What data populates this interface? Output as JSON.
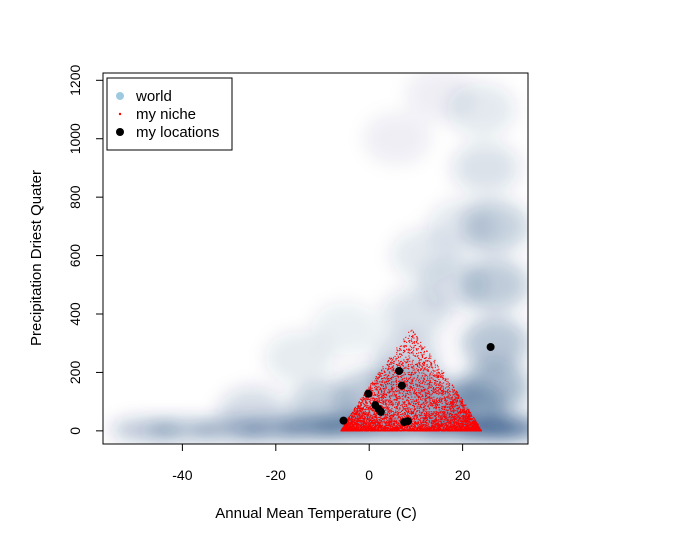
{
  "chart_data": {
    "type": "scatter",
    "title": "",
    "xlabel": "Annual Mean Temperature (C)",
    "ylabel": "Precipitation Driest Quater",
    "xlim": [
      -57,
      34
    ],
    "ylim": [
      -45,
      1225
    ],
    "x_ticks": [
      -40,
      -20,
      0,
      20
    ],
    "y_ticks": [
      0,
      200,
      400,
      600,
      800,
      1000,
      1200
    ],
    "grid": false,
    "legend_position": "top-left",
    "legend": [
      {
        "label": "world",
        "color": "#9ecae1",
        "marker": "circle"
      },
      {
        "label": "my niche",
        "color": "#ff0000",
        "marker": "small-point"
      },
      {
        "label": "my locations",
        "color": "#000000",
        "marker": "circle"
      }
    ],
    "series": [
      {
        "name": "world",
        "render": "smoothed-density",
        "color": "#08306b",
        "density_cells": [
          {
            "x": -48,
            "y": 3,
            "w": 0.55
          },
          {
            "x": -40,
            "y": 3,
            "w": 0.6
          },
          {
            "x": -30,
            "y": 4,
            "w": 0.65
          },
          {
            "x": -20,
            "y": 6,
            "w": 0.75
          },
          {
            "x": -12,
            "y": 10,
            "w": 0.8
          },
          {
            "x": -5,
            "y": 14,
            "w": 0.9
          },
          {
            "x": 2,
            "y": 14,
            "w": 0.8
          },
          {
            "x": 10,
            "y": 12,
            "w": 0.75
          },
          {
            "x": 18,
            "y": 8,
            "w": 0.8
          },
          {
            "x": 26,
            "y": 6,
            "w": 1.0
          },
          {
            "x": 31,
            "y": 10,
            "w": 1.0
          },
          {
            "x": -25,
            "y": 60,
            "w": 0.3
          },
          {
            "x": -10,
            "y": 80,
            "w": 0.4
          },
          {
            "x": 0,
            "y": 120,
            "w": 0.45
          },
          {
            "x": 8,
            "y": 150,
            "w": 0.5
          },
          {
            "x": 15,
            "y": 100,
            "w": 0.5
          },
          {
            "x": 22,
            "y": 80,
            "w": 0.55
          },
          {
            "x": 27,
            "y": 150,
            "w": 0.6
          },
          {
            "x": 27,
            "y": 300,
            "w": 0.5
          },
          {
            "x": 27,
            "y": 500,
            "w": 0.45
          },
          {
            "x": 27,
            "y": 700,
            "w": 0.4
          },
          {
            "x": 25,
            "y": 900,
            "w": 0.25
          },
          {
            "x": 24,
            "y": 1100,
            "w": 0.2
          },
          {
            "x": 8,
            "y": 250,
            "w": 0.3
          },
          {
            "x": 10,
            "y": 400,
            "w": 0.25
          },
          {
            "x": 12,
            "y": 600,
            "w": 0.2
          },
          {
            "x": 18,
            "y": 500,
            "w": 0.25
          },
          {
            "x": 20,
            "y": 700,
            "w": 0.2
          },
          {
            "x": 6,
            "y": 1000,
            "w": 0.12
          },
          {
            "x": 15,
            "y": 1150,
            "w": 0.12
          },
          {
            "x": -15,
            "y": 250,
            "w": 0.18
          },
          {
            "x": -5,
            "y": 350,
            "w": 0.15
          }
        ]
      },
      {
        "name": "my niche",
        "render": "points",
        "color": "#ff0000",
        "n_points": 6000,
        "x_range": [
          -6,
          24
        ],
        "y_range": [
          0,
          350
        ]
      },
      {
        "name": "my locations",
        "render": "points",
        "color": "#000000",
        "points": [
          {
            "x": -5.5,
            "y": 35
          },
          {
            "x": -0.2,
            "y": 127
          },
          {
            "x": 1.3,
            "y": 88
          },
          {
            "x": 2.0,
            "y": 75
          },
          {
            "x": 2.5,
            "y": 65
          },
          {
            "x": 6.4,
            "y": 205
          },
          {
            "x": 7.0,
            "y": 155
          },
          {
            "x": 7.5,
            "y": 30
          },
          {
            "x": 8.3,
            "y": 33
          },
          {
            "x": 26.0,
            "y": 287
          }
        ]
      }
    ]
  }
}
